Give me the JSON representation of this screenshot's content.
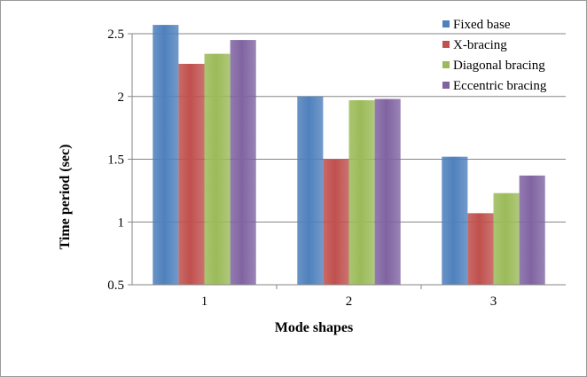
{
  "chart_data": {
    "type": "bar",
    "title": "",
    "xlabel": "Mode shapes",
    "ylabel": "Time period (sec)",
    "categories": [
      "1",
      "2",
      "3"
    ],
    "ylim": [
      0.5,
      2.5
    ],
    "yticks": [
      0.5,
      1,
      1.5,
      2,
      2.5
    ],
    "ytick_labels": [
      "0.5",
      "1",
      "1.5",
      "2",
      "2.5"
    ],
    "grid": true,
    "legend_position": "top-right",
    "series": [
      {
        "name": "Fixed base",
        "color": "#4f81bd",
        "values": [
          2.57,
          2.0,
          1.52
        ]
      },
      {
        "name": "X-bracing",
        "color": "#c0504d",
        "values": [
          2.26,
          1.5,
          1.07
        ]
      },
      {
        "name": "Diagonal bracing",
        "color": "#9bbb59",
        "values": [
          2.34,
          1.97,
          1.23
        ]
      },
      {
        "name": "Eccentric bracing",
        "color": "#8064a2",
        "values": [
          2.45,
          1.98,
          1.37
        ]
      }
    ]
  }
}
